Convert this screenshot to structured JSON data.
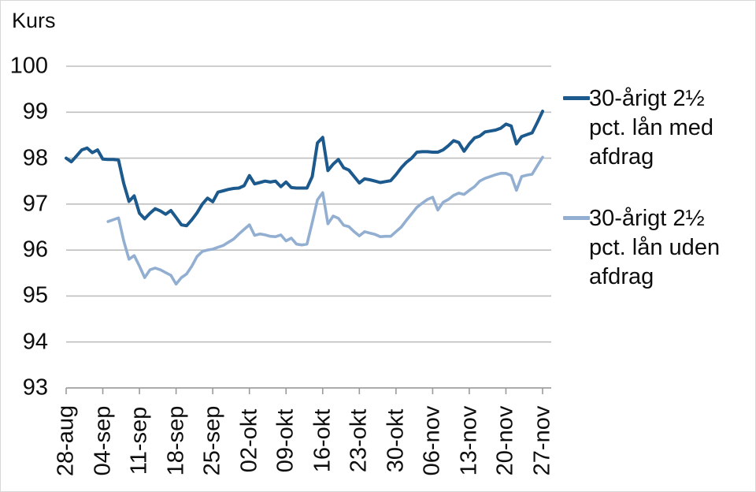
{
  "chart_data": {
    "type": "line",
    "title": "",
    "ylabel": "Kurs",
    "xlabel": "",
    "ylim": [
      93,
      100
    ],
    "y_tick_labels": [
      "100",
      "99",
      "98",
      "97",
      "96",
      "95",
      "94",
      "93"
    ],
    "y_tick_values": [
      100,
      99,
      98,
      97,
      96,
      95,
      94,
      93
    ],
    "x_tick_labels": [
      "28-aug",
      "04-sep",
      "11-sep",
      "18-sep",
      "25-sep",
      "02-okt",
      "09-okt",
      "16-okt",
      "23-okt",
      "30-okt",
      "06-nov",
      "13-nov",
      "20-nov",
      "27-nov"
    ],
    "x_span_days": 91,
    "x_tick_interval_days": 7,
    "grid": "horizontal",
    "legend_position": "right",
    "series": [
      {
        "name": "30-årigt 2½ pct. lån med afdrag",
        "color": "#1c598c",
        "start_day": 0,
        "values": [
          98.0,
          97.92,
          98.05,
          98.18,
          98.22,
          98.12,
          98.18,
          97.98,
          97.97,
          97.97,
          97.96,
          97.45,
          97.06,
          97.18,
          96.8,
          96.68,
          96.8,
          96.9,
          96.85,
          96.78,
          96.86,
          96.71,
          96.55,
          96.53,
          96.66,
          96.81,
          97.0,
          97.13,
          97.05,
          97.26,
          97.29,
          97.32,
          97.34,
          97.35,
          97.4,
          97.62,
          97.44,
          97.47,
          97.5,
          97.48,
          97.5,
          97.38,
          97.48,
          97.36,
          97.35,
          97.35,
          97.35,
          97.6,
          98.33,
          98.45,
          97.73,
          97.87,
          97.97,
          97.79,
          97.74,
          97.6,
          97.46,
          97.55,
          97.53,
          97.5,
          97.47,
          97.49,
          97.51,
          97.64,
          97.79,
          97.91,
          98.0,
          98.13,
          98.14,
          98.14,
          98.13,
          98.13,
          98.18,
          98.27,
          98.38,
          98.34,
          98.15,
          98.31,
          98.44,
          98.48,
          98.57,
          98.59,
          98.61,
          98.65,
          98.74,
          98.7,
          98.31,
          98.47,
          98.51,
          98.55,
          98.78,
          99.02
        ]
      },
      {
        "name": "30-årigt 2½ pct. lån uden afdrag",
        "color": "#92afd2",
        "start_day": 8,
        "values": [
          96.62,
          96.66,
          96.7,
          96.2,
          95.8,
          95.88,
          95.65,
          95.4,
          95.57,
          95.61,
          95.57,
          95.51,
          95.45,
          95.26,
          95.4,
          95.48,
          95.65,
          95.86,
          95.97,
          96.0,
          96.02,
          96.06,
          96.1,
          96.17,
          96.24,
          96.35,
          96.45,
          96.55,
          96.32,
          96.35,
          96.33,
          96.3,
          96.29,
          96.33,
          96.2,
          96.26,
          96.13,
          96.11,
          96.13,
          96.6,
          97.09,
          97.25,
          96.57,
          96.74,
          96.69,
          96.54,
          96.51,
          96.4,
          96.31,
          96.4,
          96.37,
          96.34,
          96.29,
          96.3,
          96.3,
          96.4,
          96.5,
          96.65,
          96.79,
          96.93,
          97.02,
          97.1,
          97.15,
          96.87,
          97.04,
          97.1,
          97.19,
          97.24,
          97.21,
          97.3,
          97.38,
          97.5,
          97.56,
          97.6,
          97.64,
          97.67,
          97.67,
          97.62,
          97.3,
          97.6,
          97.63,
          97.65,
          97.84,
          98.02
        ]
      }
    ]
  },
  "colors": {
    "background": "#ffffff",
    "border": "#d8d8d8",
    "gridline": "#bfbfbf",
    "axis": "#9b9b9b",
    "text": "#0d0d0d"
  }
}
